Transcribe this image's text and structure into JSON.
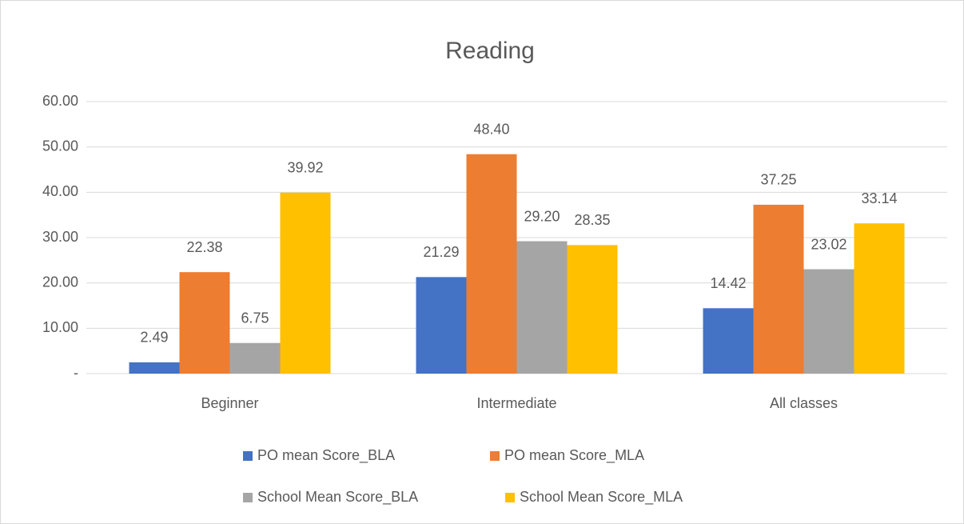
{
  "chart_data": {
    "type": "bar",
    "title": "Reading",
    "categories": [
      "Beginner",
      "Intermediate",
      "All classes"
    ],
    "series": [
      {
        "name": "PO mean Score_BLA",
        "color": "#4472c4",
        "values": [
          2.49,
          21.29,
          14.42
        ],
        "value_labels": [
          "2.49",
          "21.29",
          "14.42"
        ]
      },
      {
        "name": "PO mean Score_MLA",
        "color": "#ed7d31",
        "values": [
          22.38,
          48.4,
          37.25
        ],
        "value_labels": [
          "22.38",
          "48.40",
          "37.25"
        ]
      },
      {
        "name": "School Mean Score_BLA",
        "color": "#a5a5a5",
        "values": [
          6.75,
          29.2,
          23.02
        ],
        "value_labels": [
          "6.75",
          "29.20",
          "23.02"
        ]
      },
      {
        "name": "School Mean Score_MLA",
        "color": "#ffc000",
        "values": [
          39.92,
          28.35,
          33.14
        ],
        "value_labels": [
          "39.92",
          "28.35",
          "33.14"
        ]
      }
    ],
    "ylim": [
      0,
      60
    ],
    "yticks": [
      {
        "value": 0,
        "label": "-"
      },
      {
        "value": 10,
        "label": "10.00"
      },
      {
        "value": 20,
        "label": "20.00"
      },
      {
        "value": 30,
        "label": "30.00"
      },
      {
        "value": 40,
        "label": "40.00"
      },
      {
        "value": 50,
        "label": "50.00"
      },
      {
        "value": 60,
        "label": "60.00"
      }
    ],
    "grid": true,
    "legend": "bottom"
  }
}
